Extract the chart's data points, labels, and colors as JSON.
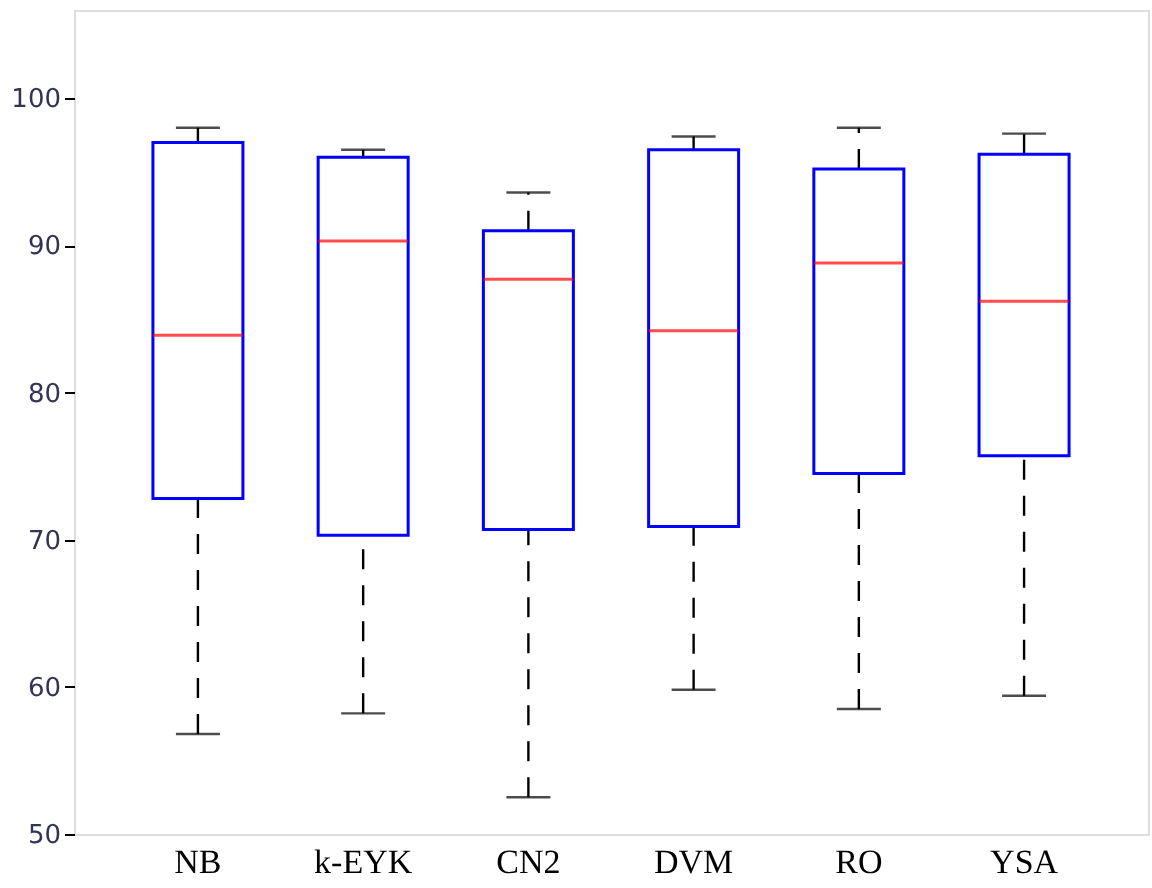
{
  "chart_data": {
    "type": "box",
    "categories": [
      "NB",
      "k-EYK",
      "CN2",
      "DVM",
      "RO",
      "YSA"
    ],
    "series": [
      {
        "color": "#0000ff",
        "boxes": [
          {
            "low": 56.8,
            "q1": 72.8,
            "median": 83.9,
            "q3": 97.0,
            "high": 98.0
          },
          {
            "low": 58.2,
            "q1": 70.3,
            "median": 90.3,
            "q3": 96.0,
            "high": 96.5
          },
          {
            "low": 52.5,
            "q1": 70.7,
            "median": 87.7,
            "q3": 91.0,
            "high": 93.6
          },
          {
            "low": 59.8,
            "q1": 70.9,
            "median": 84.2,
            "q3": 96.5,
            "high": 97.4
          },
          {
            "low": 58.5,
            "q1": 74.5,
            "median": 88.8,
            "q3": 95.2,
            "high": 98.0
          },
          {
            "low": 59.4,
            "q1": 75.7,
            "median": 86.2,
            "q3": 96.2,
            "high": 97.6
          }
        ]
      }
    ],
    "ylim": [
      50,
      106
    ],
    "yticks": [
      50,
      60,
      70,
      80,
      90,
      100
    ],
    "grid": false
  }
}
